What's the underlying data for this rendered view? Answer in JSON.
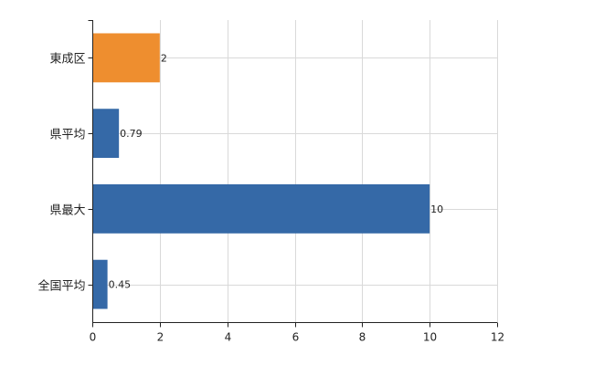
{
  "chart_data": {
    "type": "bar",
    "orientation": "horizontal",
    "categories": [
      "東成区",
      "県平均",
      "県最大",
      "全国平均"
    ],
    "values": [
      2,
      0.79,
      10,
      0.45
    ],
    "value_labels": [
      "2",
      "0.79",
      "10",
      "0.45"
    ],
    "bar_colors": [
      "#ee8e2f",
      "#3569a7",
      "#3569a7",
      "#3569a7"
    ],
    "xlim": [
      0,
      12
    ],
    "xticks": [
      0,
      2,
      4,
      6,
      8,
      10,
      12
    ],
    "grid": true,
    "title": "",
    "xlabel": "",
    "ylabel": ""
  }
}
